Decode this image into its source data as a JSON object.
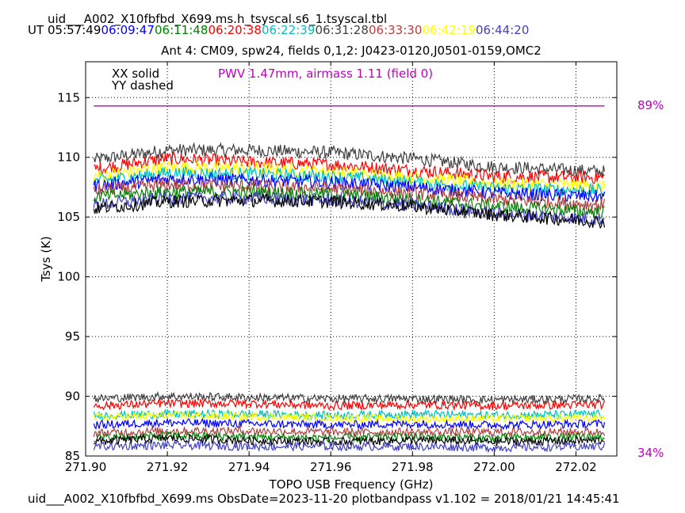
{
  "header": {
    "filename": "uid___A002_X10fbfbd_X699.ms.h_tsyscal.s6_1.tsyscal.tbl",
    "ut_label": "UT",
    "times": [
      {
        "text": "05:57:49",
        "color": "#000000"
      },
      {
        "text": "06:09:47",
        "color": "#0000ff"
      },
      {
        "text": "06:11:48",
        "color": "#008000"
      },
      {
        "text": "06:20:38",
        "color": "#ff0000"
      },
      {
        "text": "06:22:39",
        "color": "#00bfbf"
      },
      {
        "text": "06:31:28",
        "color": "#404040"
      },
      {
        "text": "06:33:30",
        "color": "#b04040"
      },
      {
        "text": "06:42:19",
        "color": "#ffff00"
      },
      {
        "text": "06:44:20",
        "color": "#4040c0"
      }
    ]
  },
  "footer": {
    "text": "uid___A002_X10fbfbd_X699.ms  ObsDate=2023-11-20   plotbandpass v1.102 = 2018/01/21 14:45:41"
  },
  "chart_data": {
    "type": "line",
    "title": "Ant 4: CM09,  spw24,  fields 0,1,2: J0423-0120,J0501-0159,OMC2",
    "xlabel": "TOPO USB Frequency (GHz)",
    "ylabel": "Tsys (K)",
    "xlim": [
      271.9,
      272.03
    ],
    "ylim": [
      85,
      118
    ],
    "xticks": [
      271.9,
      271.92,
      271.94,
      271.96,
      271.98,
      272.0,
      272.02
    ],
    "xtick_labels": [
      "271.90",
      "271.92",
      "271.94",
      "271.96",
      "271.98",
      "272.00",
      "272.02"
    ],
    "yticks": [
      85,
      90,
      95,
      100,
      105,
      110,
      115
    ],
    "grid": true,
    "legend": {
      "placement": "top-left",
      "entries": [
        "XX solid",
        "YY dashed"
      ]
    },
    "pwv_annotation": {
      "text": "PWV 1.47mm, airmass 1.11 (field 0)",
      "color": "#c000c0"
    },
    "atm_transmission": {
      "color": "#c000c0",
      "high_label": "89%",
      "low_label": "34%",
      "x": [
        271.902,
        272.027
      ],
      "tsys_level": 114.3
    },
    "series_color_order": [
      "#000000",
      "#0000ff",
      "#008000",
      "#ff0000",
      "#00bfbf",
      "#404040",
      "#b04040",
      "#ffff00",
      "#4040c0"
    ],
    "upper_group": {
      "description_points": [
        271.902,
        271.92,
        271.94,
        271.96,
        271.98,
        272.0,
        272.027
      ],
      "series": [
        {
          "color": "#404040",
          "values": [
            109.8,
            110.6,
            110.6,
            110.4,
            109.9,
            109.2,
            108.8
          ]
        },
        {
          "color": "#ff0000",
          "values": [
            109.0,
            109.9,
            109.6,
            109.4,
            108.9,
            108.4,
            108.3
          ]
        },
        {
          "color": "#ffff00",
          "values": [
            108.4,
            109.2,
            109.1,
            108.8,
            108.3,
            107.8,
            107.6
          ]
        },
        {
          "color": "#00bfbf",
          "values": [
            108.0,
            108.7,
            108.6,
            108.4,
            107.9,
            107.4,
            107.2
          ]
        },
        {
          "color": "#0000ff",
          "values": [
            107.6,
            108.2,
            108.1,
            107.9,
            107.5,
            107.0,
            106.7
          ]
        },
        {
          "color": "#b04040",
          "values": [
            107.2,
            107.7,
            107.6,
            107.4,
            107.0,
            106.5,
            106.0
          ]
        },
        {
          "color": "#008000",
          "values": [
            106.7,
            107.1,
            107.1,
            106.9,
            106.5,
            105.9,
            105.4
          ]
        },
        {
          "color": "#4040c0",
          "values": [
            106.0,
            106.6,
            106.6,
            106.4,
            106.0,
            105.3,
            104.8
          ]
        },
        {
          "color": "#000000",
          "values": [
            105.7,
            106.3,
            106.4,
            106.3,
            105.9,
            105.2,
            104.6
          ]
        }
      ]
    },
    "lower_group": {
      "description_points": [
        271.902,
        271.92,
        271.94,
        271.96,
        271.98,
        272.0,
        272.027
      ],
      "series": [
        {
          "color": "#404040",
          "values": [
            89.8,
            90.0,
            89.9,
            89.8,
            89.8,
            89.7,
            89.8
          ]
        },
        {
          "color": "#ff0000",
          "values": [
            89.2,
            89.4,
            89.4,
            89.2,
            89.3,
            89.2,
            89.3
          ]
        },
        {
          "color": "#00bfbf",
          "values": [
            88.4,
            88.5,
            88.5,
            88.4,
            88.5,
            88.4,
            88.5
          ]
        },
        {
          "color": "#ffff00",
          "values": [
            88.2,
            88.4,
            88.3,
            88.2,
            88.1,
            88.1,
            88.2
          ]
        },
        {
          "color": "#0000ff",
          "values": [
            87.6,
            87.8,
            87.7,
            87.6,
            87.7,
            87.6,
            87.7
          ]
        },
        {
          "color": "#b04040",
          "values": [
            86.9,
            87.1,
            87.1,
            87.0,
            87.0,
            87.0,
            87.0
          ]
        },
        {
          "color": "#008000",
          "values": [
            86.5,
            86.7,
            86.6,
            86.5,
            86.6,
            86.5,
            86.6
          ]
        },
        {
          "color": "#000000",
          "values": [
            86.2,
            86.5,
            86.3,
            86.2,
            86.3,
            86.2,
            86.3
          ]
        },
        {
          "color": "#4040c0",
          "values": [
            85.8,
            85.9,
            85.8,
            85.8,
            85.8,
            85.7,
            85.8
          ]
        }
      ]
    }
  }
}
